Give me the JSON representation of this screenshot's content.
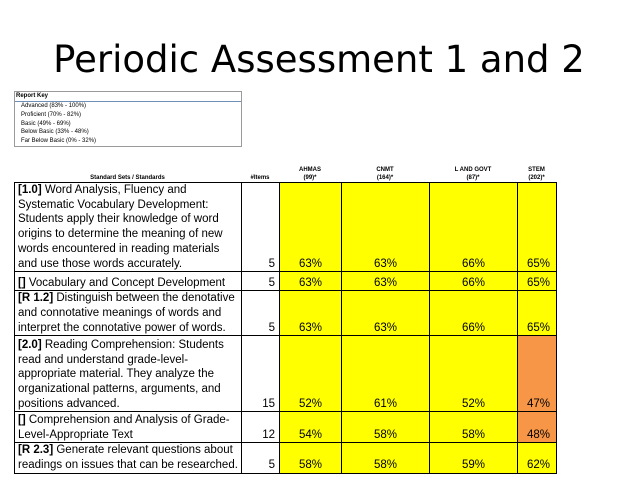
{
  "title": "Periodic Assessment 1 and 2",
  "report_key": {
    "heading": "Report Key",
    "items": [
      "Advanced (83% - 100%)",
      "Proficient (70% - 82%)",
      "Basic (49% - 69%)",
      "Below Basic (33% - 48%)",
      "Far Below Basic (0% - 32%)"
    ]
  },
  "headers": {
    "standards": "Standard Sets / Standards",
    "items": "#Items",
    "groups": [
      {
        "name": "AHMAS",
        "count": "(99)*"
      },
      {
        "name": "CNMT",
        "count": "(164)*"
      },
      {
        "name": "L AND GOVT",
        "count": "(87)*"
      },
      {
        "name": "STEM",
        "count": "(202)*"
      }
    ]
  },
  "colors": {
    "proficiency_yellow": "#ffff00",
    "below_basic_orange": "#f79646"
  },
  "rows": [
    {
      "code": "[1.0]",
      "text": " Word Analysis, Fluency and Systematic Vocabulary Development: Students apply their knowledge of word origins to determine the meaning of new words encountered in reading materials and use those words accurately.",
      "items": "5",
      "scores": [
        "63%",
        "63%",
        "66%",
        "65%"
      ]
    },
    {
      "code": "[]",
      "text": " Vocabulary and Concept Development",
      "items": "5",
      "scores": [
        "63%",
        "63%",
        "66%",
        "65%"
      ]
    },
    {
      "code": "[R 1.2]",
      "text": " Distinguish between the denotative and connotative meanings of words and interpret the connotative power of words.",
      "items": "5",
      "scores": [
        "63%",
        "63%",
        "66%",
        "65%"
      ]
    },
    {
      "code": "[2.0]",
      "text": " Reading Comprehension: Students read and understand grade-level-appropriate material. They analyze the organizational patterns, arguments, and positions advanced.",
      "items": "15",
      "scores": [
        "52%",
        "61%",
        "52%",
        "47%"
      ]
    },
    {
      "code": "[]",
      "text": " Comprehension and Analysis of Grade-Level-Appropriate Text",
      "items": "12",
      "scores": [
        "54%",
        "58%",
        "58%",
        "48%"
      ]
    },
    {
      "code": "[R 2.3]",
      "text": " Generate relevant questions about readings on issues that can be researched.",
      "items": "5",
      "scores": [
        "58%",
        "58%",
        "59%",
        "62%"
      ]
    }
  ]
}
